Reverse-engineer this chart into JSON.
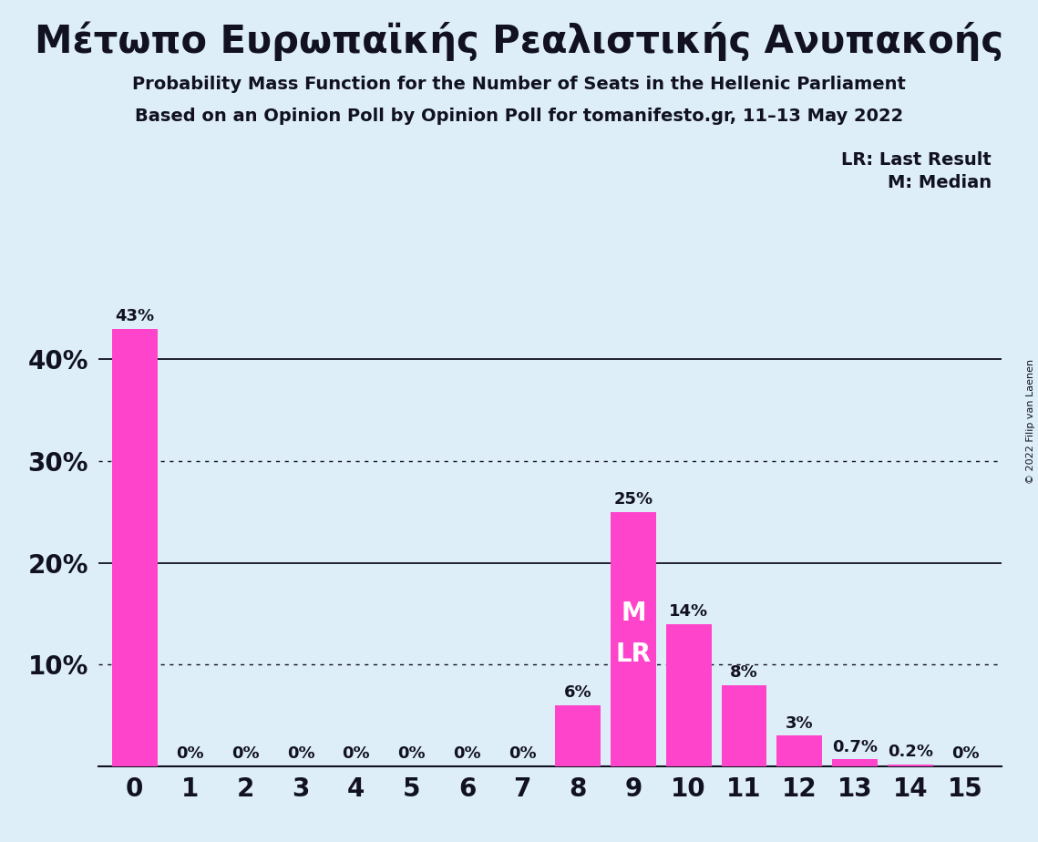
{
  "title": "Μέτωπο Ευρωπαϊκής Ρεαλιστικής Ανυπακοής",
  "subtitle1": "Probability Mass Function for the Number of Seats in the Hellenic Parliament",
  "subtitle2": "Based on an Opinion Poll by Opinion Poll for tomanifesto.gr, 11–13 May 2022",
  "copyright": "© 2022 Filip van Laenen",
  "legend_lr": "LR: Last Result",
  "legend_m": "M: Median",
  "categories": [
    0,
    1,
    2,
    3,
    4,
    5,
    6,
    7,
    8,
    9,
    10,
    11,
    12,
    13,
    14,
    15
  ],
  "values": [
    43,
    0,
    0,
    0,
    0,
    0,
    0,
    0,
    6,
    25,
    14,
    8,
    3,
    0.7,
    0.2,
    0
  ],
  "bar_color": "#FF44CC",
  "background_color": "#DDEEF8",
  "text_color": "#111122",
  "ylim": [
    0,
    48
  ],
  "median_seat": 9,
  "lr_seat": 9,
  "solid_gridlines": [
    20,
    40
  ],
  "dotted_gridlines": [
    10,
    30
  ]
}
